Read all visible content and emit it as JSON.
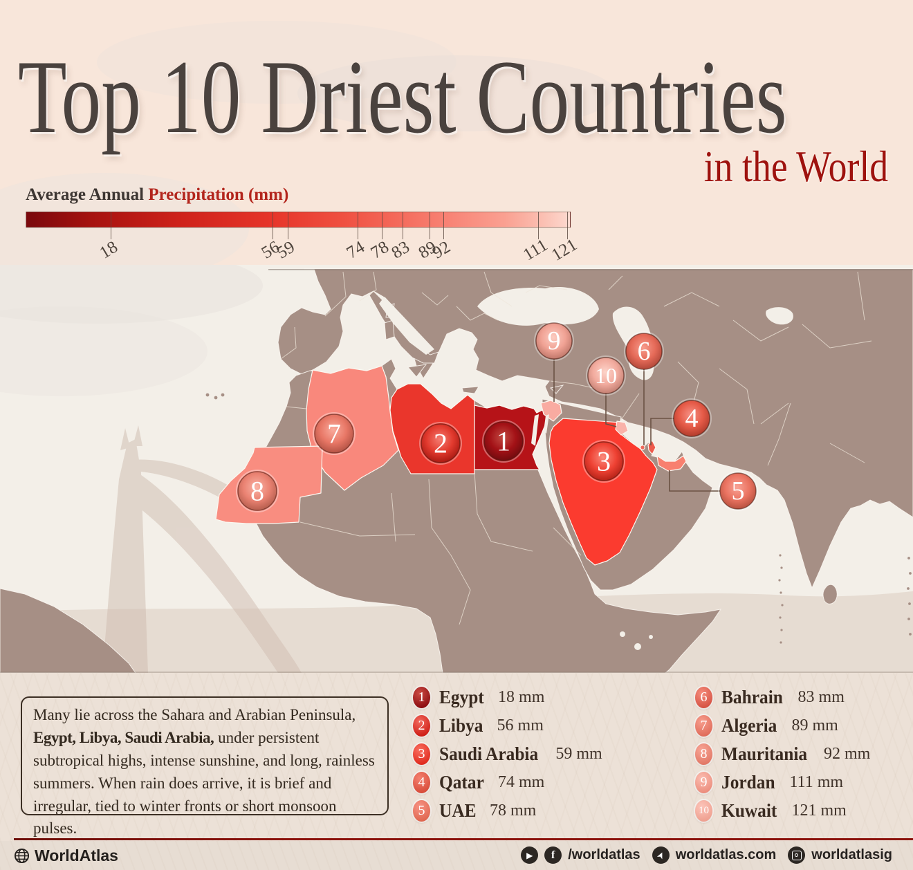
{
  "title": "Top 10 Driest Countries",
  "subtitle": "in the World",
  "legend": {
    "label_prefix": "Average Annual ",
    "label_accent": "Precipitation (mm)",
    "ticks": [
      {
        "label": "18",
        "pos": 15.6
      },
      {
        "label": "56",
        "pos": 45.3
      },
      {
        "label": "59",
        "pos": 48.1
      },
      {
        "label": "74",
        "pos": 60.9
      },
      {
        "label": "78",
        "pos": 65.4
      },
      {
        "label": "83",
        "pos": 69.2
      },
      {
        "label": "89",
        "pos": 74.1
      },
      {
        "label": "92",
        "pos": 76.6
      },
      {
        "label": "111",
        "pos": 94.0
      },
      {
        "label": "121",
        "pos": 99.4
      }
    ],
    "gradient_dark": "#7a090d",
    "gradient_light": "#fcd9cf"
  },
  "chart_data": {
    "type": "table",
    "title": "Top 10 Driest Countries in the World",
    "metric": "Average Annual Precipitation (mm)",
    "categories": [
      "Egypt",
      "Libya",
      "Saudi Arabia",
      "Qatar",
      "UAE",
      "Bahrain",
      "Algeria",
      "Mauritania",
      "Jordan",
      "Kuwait"
    ],
    "values": [
      18,
      56,
      59,
      74,
      78,
      83,
      89,
      92,
      111,
      121
    ],
    "range": [
      18,
      121
    ]
  },
  "countries": [
    {
      "rank": "1",
      "name": "Egypt",
      "value": "18 mm",
      "badge_light": "#cb4a43",
      "badge_dark": "#8c0d11"
    },
    {
      "rank": "2",
      "name": "Libya",
      "value": "56 mm",
      "badge_light": "#f2695e",
      "badge_dark": "#ce1d15"
    },
    {
      "rank": "3",
      "name": "Saudi Arabia",
      "value": "59 mm",
      "badge_light": "#f96e60",
      "badge_dark": "#e02a1d"
    },
    {
      "rank": "4",
      "name": "Qatar",
      "value": "74 mm",
      "badge_light": "#f4806f",
      "badge_dark": "#d84c3a"
    },
    {
      "rank": "5",
      "name": "UAE",
      "value": "78 mm",
      "badge_light": "#f79384",
      "badge_dark": "#e0664f"
    },
    {
      "rank": "6",
      "name": "Bahrain",
      "value": "83 mm",
      "badge_light": "#f58b7b",
      "badge_dark": "#d65344"
    },
    {
      "rank": "7",
      "name": "Algeria",
      "value": "89 mm",
      "badge_light": "#f79d8d",
      "badge_dark": "#e06c5a"
    },
    {
      "rank": "8",
      "name": "Mauritania",
      "value": "92 mm",
      "badge_light": "#f8a596",
      "badge_dark": "#e27866"
    },
    {
      "rank": "9",
      "name": "Jordan",
      "value": "111 mm",
      "badge_light": "#fbbcb0",
      "badge_dark": "#ec8e7e"
    },
    {
      "rank": "10",
      "name": "Kuwait",
      "value": "121 mm",
      "badge_light": "#fcc4b9",
      "badge_dark": "#efa090"
    }
  ],
  "marker_colors": [
    {
      "rank": "1",
      "light": "#c24b43",
      "mid": "#a31116",
      "dark": "#6e0b0e"
    },
    {
      "rank": "2",
      "light": "#f47c71",
      "mid": "#e23a2e",
      "dark": "#a51710"
    },
    {
      "rank": "3",
      "light": "#fa8a7c",
      "mid": "#ef4234",
      "dark": "#b12015"
    },
    {
      "rank": "4",
      "light": "#f79286",
      "mid": "#e55a47",
      "dark": "#ad3a2a"
    },
    {
      "rank": "5",
      "light": "#f9a396",
      "mid": "#ea7361",
      "dark": "#b44f3d"
    },
    {
      "rank": "6",
      "light": "#f79c8d",
      "mid": "#e56a58",
      "dark": "#ae4537"
    },
    {
      "rank": "7",
      "light": "#f9ab9d",
      "mid": "#e87766",
      "dark": "#b05042"
    },
    {
      "rank": "8",
      "light": "#fab3a5",
      "mid": "#ea8272",
      "dark": "#b25b4b"
    },
    {
      "rank": "9",
      "light": "#fcccc1",
      "mid": "#f0a294",
      "dark": "#bd7568"
    },
    {
      "rank": "10",
      "light": "#fdd3c9",
      "mid": "#f2ab9e",
      "dark": "#c07d70"
    }
  ],
  "map_colors": {
    "sea": "#f3efe8",
    "land": "#a68f85",
    "egypt": "#b61318",
    "libya": "#ea362c",
    "saudi_arabia": "#fb3b2f",
    "algeria": "#f9887c",
    "mauritania": "#f98d80",
    "jordan": "#f9aba1",
    "kuwait": "#f9b2a9",
    "qatar": "#ee5a4c",
    "bahrain": "#f0685a",
    "uae": "#f8806f"
  },
  "description": {
    "part1": "Many lie across the Sahara and Arabian Peninsula, ",
    "bold": "Egypt, Libya, Saudi Arabia,",
    "part2": " under persistent subtropical highs, intense sunshine, and long, rainless summers. When rain does arrive, it is brief and irregular, tied to winter fronts or short monsoon pulses."
  },
  "footer": {
    "brand": "WorldAtlas",
    "social_handle": "/worldatlas",
    "social_site": "worldatlas.com",
    "social_ig": "worldatlasig",
    "play_glyph": "▶",
    "facebook_glyph": "f",
    "cursor_glyph": "➤"
  }
}
